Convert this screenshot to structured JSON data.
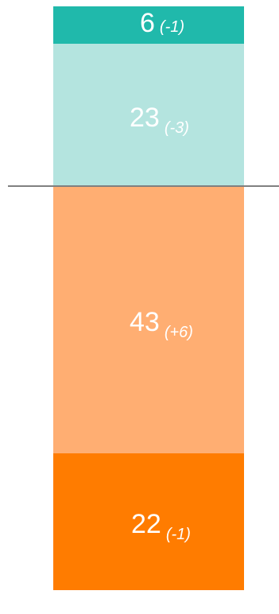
{
  "chart_data": {
    "type": "stacked-bar",
    "segments": [
      {
        "value": 6,
        "delta": "(-1)",
        "color": "#20B9AB"
      },
      {
        "value": 23,
        "delta": "(-3)",
        "color": "#B4E4DF"
      },
      {
        "value": 43,
        "delta": "(+6)",
        "color": "#FFAE72"
      },
      {
        "value": 22,
        "delta": "(-1)",
        "color": "#FF7C00"
      }
    ],
    "divider_after_segment": 2,
    "label_color": "#FFFFFF",
    "divider_color": "#808080"
  }
}
